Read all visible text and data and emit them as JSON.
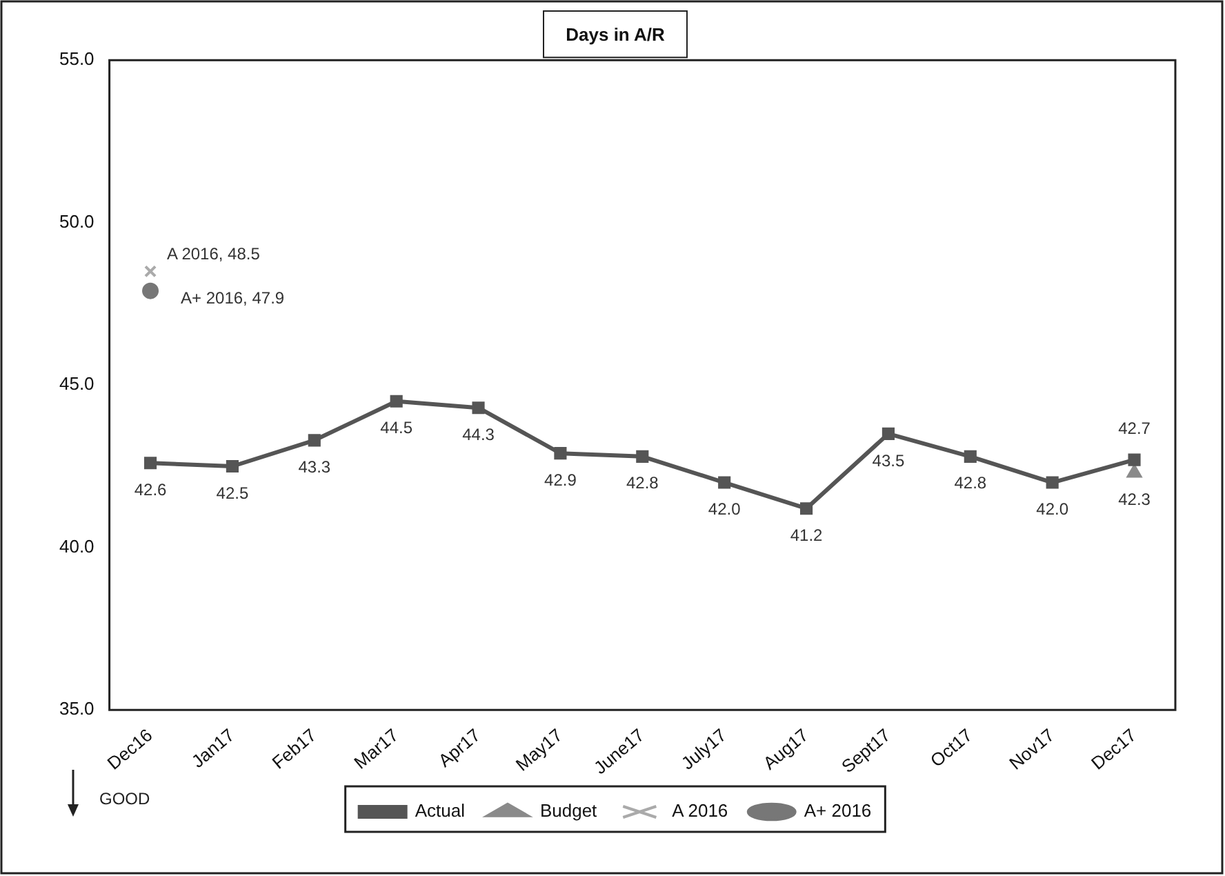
{
  "chart_data": {
    "type": "line",
    "title": "Days in A/R",
    "categories": [
      "Dec16",
      "Jan17",
      "Feb17",
      "Mar17",
      "Apr17",
      "May17",
      "June17",
      "July17",
      "Aug17",
      "Sept17",
      "Oct17",
      "Nov17",
      "Dec17"
    ],
    "series": [
      {
        "name": "Actual",
        "color": "#555555",
        "marker": "square",
        "values": [
          42.6,
          42.5,
          43.3,
          44.5,
          44.3,
          42.9,
          42.8,
          42.0,
          41.2,
          43.5,
          42.8,
          42.0,
          42.7
        ],
        "value_labels": [
          "42.6",
          "42.5",
          "43.3",
          "44.5",
          "44.3",
          "42.9",
          "42.8",
          "42.0",
          "41.2",
          "43.5",
          "42.8",
          "42.0",
          "42.7"
        ]
      },
      {
        "name": "Budget",
        "color": "#8a8a8a",
        "marker": "triangle",
        "values": [
          null,
          null,
          null,
          null,
          null,
          null,
          null,
          null,
          null,
          null,
          null,
          null,
          42.3
        ],
        "value_labels": [
          null,
          null,
          null,
          null,
          null,
          null,
          null,
          null,
          null,
          null,
          null,
          null,
          "42.3"
        ]
      },
      {
        "name": "A 2016",
        "color": "#aaaaaa",
        "marker": "cross",
        "values": [
          48.5,
          null,
          null,
          null,
          null,
          null,
          null,
          null,
          null,
          null,
          null,
          null,
          null
        ],
        "value_labels": [
          "A 2016, 48.5",
          null,
          null,
          null,
          null,
          null,
          null,
          null,
          null,
          null,
          null,
          null,
          null
        ]
      },
      {
        "name": "A+ 2016",
        "color": "#777777",
        "marker": "circle",
        "values": [
          47.9,
          null,
          null,
          null,
          null,
          null,
          null,
          null,
          null,
          null,
          null,
          null,
          null
        ],
        "value_labels": [
          "A+ 2016, 47.9",
          null,
          null,
          null,
          null,
          null,
          null,
          null,
          null,
          null,
          null,
          null,
          null
        ]
      }
    ],
    "ylim": [
      35,
      55
    ],
    "yticks": [
      {
        "value": 35,
        "label": "35.0"
      },
      {
        "value": 40,
        "label": "40.0"
      },
      {
        "value": 45,
        "label": "45.0"
      },
      {
        "value": 50,
        "label": "50.0"
      },
      {
        "value": 55,
        "label": "55.0"
      }
    ],
    "grid": false,
    "legend": "bottom",
    "annotations": [
      "GOOD"
    ]
  }
}
